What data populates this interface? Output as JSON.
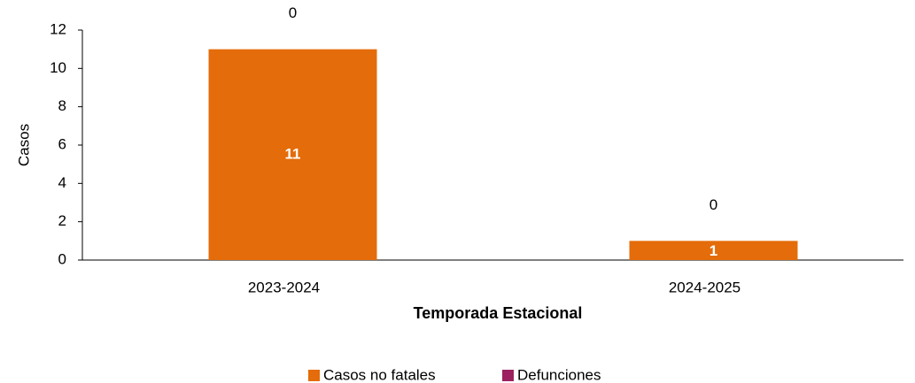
{
  "chart_data": {
    "type": "stacked_bar",
    "categories": [
      "2023-2024",
      "2024-2025"
    ],
    "series": [
      {
        "name": "Casos no fatales",
        "color": "#E46C0A",
        "values": [
          11,
          1
        ]
      },
      {
        "name": "Defunciones",
        "color": "#9B2160",
        "values": [
          0,
          0
        ]
      }
    ],
    "ylabel": "Casos",
    "xlabel": "Temporada Estacional",
    "ylim": [
      0,
      12
    ],
    "yticks": [
      0,
      2,
      4,
      6,
      8,
      10,
      12
    ],
    "legend": "bottom"
  }
}
